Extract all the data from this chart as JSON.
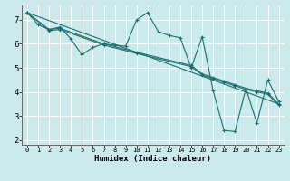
{
  "xlabel": "Humidex (Indice chaleur)",
  "bg_color": "#cce9eb",
  "grid_color": "#ffffff",
  "line_color": "#1a7070",
  "xlim": [
    -0.5,
    23.5
  ],
  "ylim": [
    1.8,
    7.6
  ],
  "yticks": [
    2,
    3,
    4,
    5,
    6,
    7
  ],
  "xtick_labels": [
    "0",
    "1",
    "2",
    "3",
    "4",
    "5",
    "6",
    "7",
    "8",
    "9",
    "10",
    "11",
    "12",
    "13",
    "14",
    "15",
    "16",
    "17",
    "18",
    "19",
    "20",
    "21",
    "22",
    "23"
  ],
  "lines": [
    {
      "x": [
        0,
        1,
        2,
        3,
        4,
        5,
        6,
        7,
        8,
        9,
        10,
        11,
        12,
        13,
        14,
        15,
        16,
        17,
        18,
        19,
        20,
        21,
        22,
        23
      ],
      "y": [
        7.3,
        6.8,
        6.6,
        6.7,
        6.2,
        5.55,
        5.85,
        6.0,
        5.95,
        5.9,
        7.0,
        7.3,
        6.5,
        6.35,
        6.25,
        5.0,
        6.3,
        4.05,
        2.4,
        2.35,
        4.15,
        2.7,
        4.5,
        3.6
      ]
    },
    {
      "x": [
        0,
        2,
        3,
        7,
        10,
        15,
        16,
        17,
        18,
        19,
        20,
        21,
        22,
        23
      ],
      "y": [
        7.3,
        6.6,
        6.65,
        6.0,
        5.65,
        5.1,
        4.75,
        4.6,
        4.45,
        4.3,
        4.15,
        4.05,
        3.95,
        3.5
      ]
    },
    {
      "x": [
        0,
        2,
        3,
        7,
        10,
        15,
        16,
        17,
        18,
        19,
        20,
        21,
        22,
        23
      ],
      "y": [
        7.3,
        6.55,
        6.6,
        5.95,
        5.6,
        5.05,
        4.7,
        4.55,
        4.4,
        4.25,
        4.1,
        4.0,
        3.9,
        3.45
      ]
    },
    {
      "x": [
        0,
        23
      ],
      "y": [
        7.3,
        3.5
      ]
    }
  ]
}
